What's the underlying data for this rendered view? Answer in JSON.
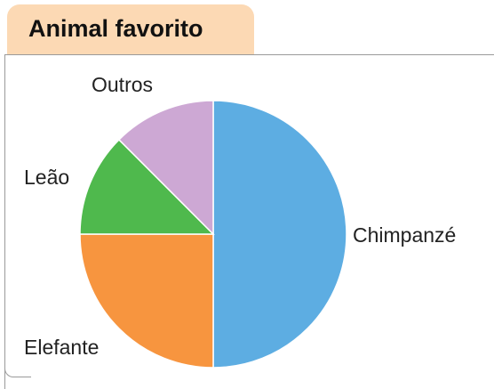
{
  "chart_data": {
    "type": "pie",
    "title": "Animal favorito",
    "categories": [
      "Chimpanzé",
      "Elefante",
      "Leão",
      "Outros"
    ],
    "values": [
      50,
      25,
      12.5,
      12.5
    ],
    "colors": [
      "#5dade2",
      "#f7953f",
      "#4fb94d",
      "#cda8d4"
    ],
    "start_angle_deg": 0,
    "direction": "clockwise",
    "legend": "none"
  }
}
